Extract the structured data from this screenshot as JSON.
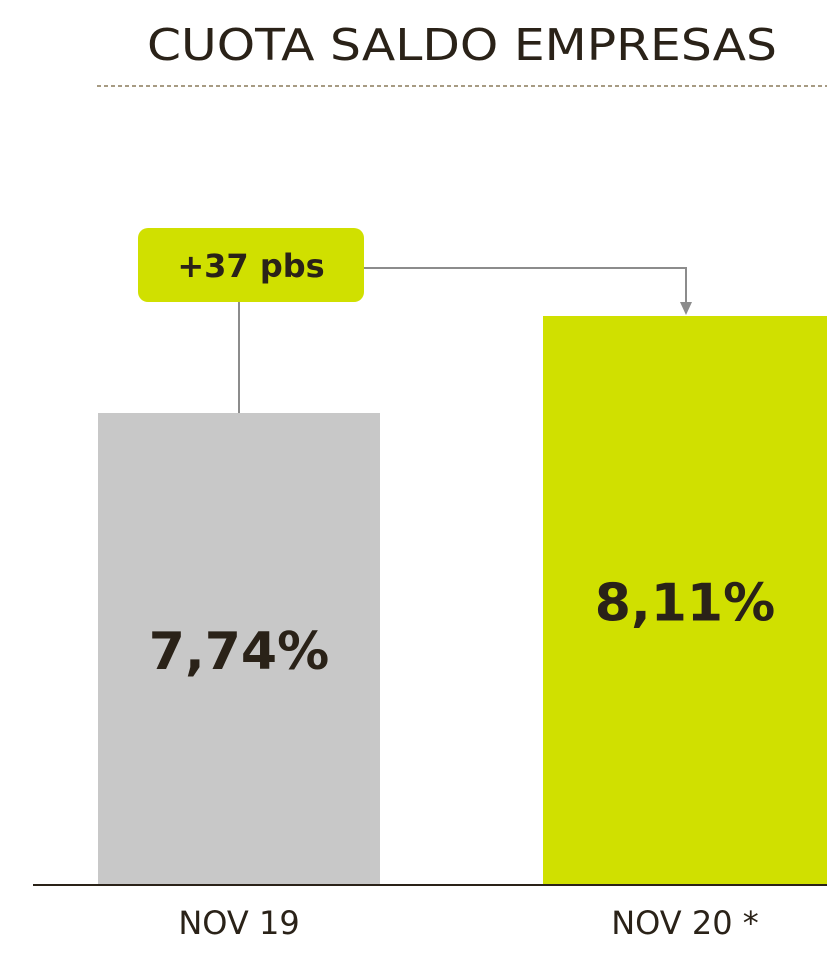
{
  "chart_data": {
    "type": "bar",
    "title": "CUOTA SALDO EMPRESAS",
    "categories": [
      "NOV 19",
      "NOV 20 *"
    ],
    "values": [
      7.74,
      8.11
    ],
    "value_labels": [
      "7,74%",
      "8,11%"
    ],
    "colors": [
      "#c8c8c8",
      "#d0e000"
    ],
    "annotation": "+37 pbs",
    "ylim": [
      5.94,
      8.11
    ]
  }
}
